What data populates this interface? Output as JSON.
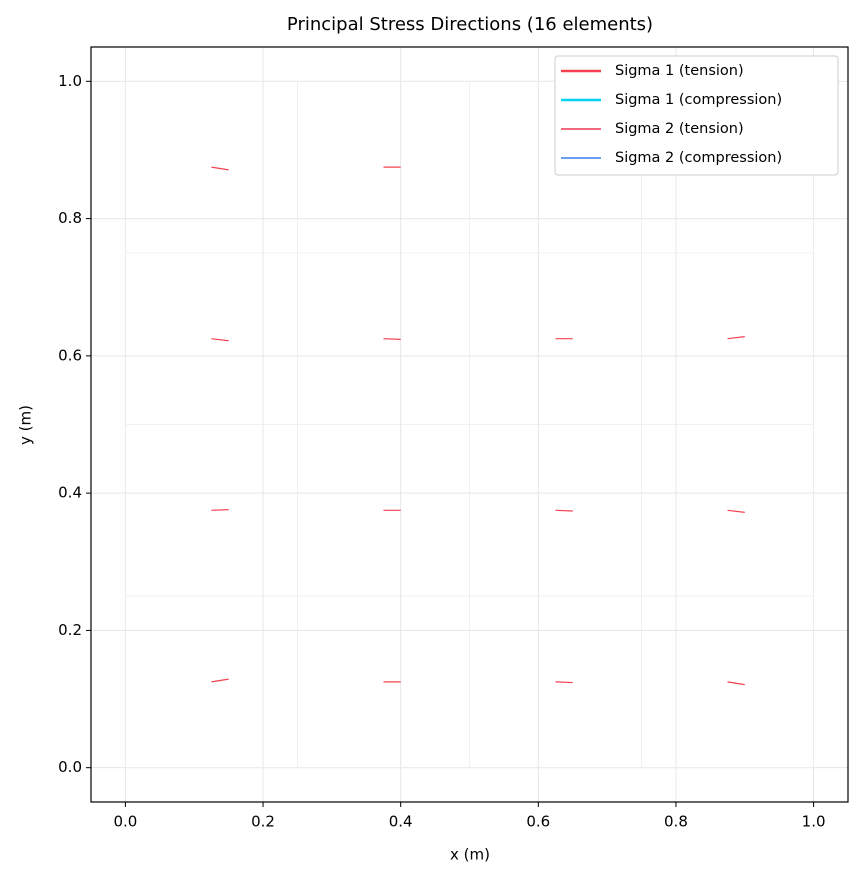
{
  "chart_data": {
    "type": "quiver",
    "title": "Principal Stress Directions (16 elements)",
    "x_label": "x (m)",
    "y_label": "y (m)",
    "xlim": [
      -0.05,
      1.05
    ],
    "ylim": [
      -0.05,
      1.05
    ],
    "xticks": [
      {
        "value": 0,
        "label": "0.0"
      },
      0.2,
      0.4,
      0.6,
      0.8,
      {
        "value": 1,
        "label": "1.0"
      }
    ],
    "yticks": [
      {
        "value": 0,
        "label": "0.0"
      },
      0.2,
      0.4,
      0.6,
      0.8,
      {
        "value": 1,
        "label": "1.0"
      }
    ],
    "grid": true,
    "mesh_x": [
      0,
      0.25,
      0.5,
      0.75,
      1
    ],
    "mesh_y": [
      0,
      0.25,
      0.5,
      0.75,
      1
    ],
    "legend": "upper right",
    "series": [
      {
        "name": "Sigma 1 (tension)",
        "color": "#f5414f",
        "linewidth": 2.5,
        "x": [
          0.125,
          0.375,
          0.125,
          0.375,
          0.625,
          0.875,
          0.125,
          0.375,
          0.625,
          0.875,
          0.125,
          0.375,
          0.625,
          0.875
        ],
        "y": [
          0.875,
          0.875,
          0.625,
          0.625,
          0.625,
          0.625,
          0.375,
          0.375,
          0.375,
          0.375,
          0.125,
          0.125,
          0.125,
          0.125
        ],
        "u": [
          0.025,
          0.025,
          0.025,
          0.025,
          0.025,
          0.025,
          0.025,
          0.025,
          0.025,
          0.025,
          0.025,
          0.025,
          0.025,
          0.025
        ],
        "v": [
          -0.004,
          0,
          -0.003,
          -0.001,
          0,
          0.003,
          0.001,
          0,
          -0.001,
          -0.003,
          0.004,
          0,
          -0.001,
          -0.004
        ]
      },
      {
        "name": "Sigma 1 (compression)",
        "color": "#00d2f2",
        "linewidth": 2.5,
        "x": [],
        "y": [],
        "u": [],
        "v": []
      },
      {
        "name": "Sigma 2 (tension)",
        "color": "#f26b7c",
        "linewidth": 2,
        "x": [],
        "y": [],
        "u": [],
        "v": []
      },
      {
        "name": "Sigma 2 (compression)",
        "color": "#6a9cf2",
        "linewidth": 2,
        "x": [],
        "y": [],
        "u": [],
        "v": []
      }
    ]
  }
}
